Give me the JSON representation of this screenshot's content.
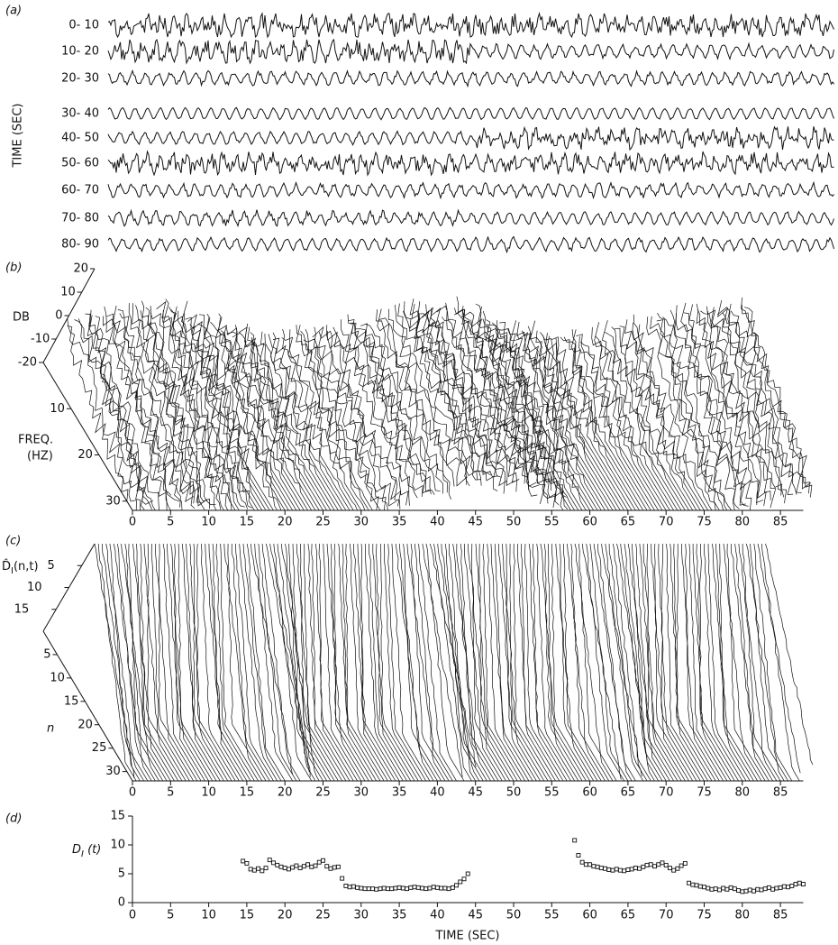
{
  "chart_data": [
    {
      "type": "traces",
      "label": "(a)",
      "ylabel": "TIME (SEC)",
      "categories": [
        "0- 10",
        "10- 20",
        "20- 30",
        "30- 40",
        "40- 50",
        "50- 60",
        "60- 70",
        "70- 80",
        "80- 90"
      ]
    },
    {
      "type": "surface",
      "label": "(b)",
      "zlabel": "DB",
      "zlim": [
        -20,
        20
      ],
      "zticks": [
        20,
        10,
        0,
        -10,
        -20
      ],
      "ylabel": [
        "FREQ.",
        "(HZ)"
      ],
      "ylim": [
        0,
        32
      ],
      "yticks": [
        10,
        20,
        30
      ],
      "xlim": [
        0,
        88
      ],
      "xticks": [
        0,
        5,
        10,
        15,
        20,
        25,
        30,
        35,
        40,
        45,
        50,
        55,
        60,
        65,
        70,
        75,
        80,
        85
      ]
    },
    {
      "type": "waterfall",
      "label": "(c)",
      "zlabel": {
        "main": "D̂",
        "sub": "I",
        "rest": "(n,t)"
      },
      "zlim": [
        0,
        20
      ],
      "zticks": [
        5,
        10,
        15
      ],
      "ylabel": "n",
      "ylim": [
        0,
        32
      ],
      "yticks": [
        5,
        10,
        15,
        20,
        25,
        30
      ],
      "xlim": [
        0,
        88
      ],
      "xticks": [
        0,
        5,
        10,
        15,
        20,
        25,
        30,
        35,
        40,
        45,
        50,
        55,
        60,
        65,
        70,
        75,
        80,
        85
      ]
    },
    {
      "type": "scatter",
      "label": "(d)",
      "ylabel": {
        "main": "D",
        "sub": "I",
        "rest": " (t)"
      },
      "xlabel": "TIME (SEC)",
      "xlim": [
        0,
        88
      ],
      "ylim": [
        0,
        15
      ],
      "yticks": [
        0,
        5,
        10,
        15
      ],
      "xticks": [
        0,
        5,
        10,
        15,
        20,
        25,
        30,
        35,
        40,
        45,
        50,
        55,
        60,
        65,
        70,
        75,
        80,
        85
      ],
      "x": [
        14.5,
        15,
        15.5,
        16,
        16.5,
        17,
        17.5,
        18,
        18.5,
        19,
        19.5,
        20,
        20.5,
        21,
        21.5,
        22,
        22.5,
        23,
        23.5,
        24,
        24.5,
        25,
        25.5,
        26,
        26.5,
        27,
        27.5,
        28,
        28.5,
        29,
        29.5,
        30,
        30.5,
        31,
        31.5,
        32,
        32.5,
        33,
        33.5,
        34,
        34.5,
        35,
        35.5,
        36,
        36.5,
        37,
        37.5,
        38,
        38.5,
        39,
        39.5,
        40,
        40.5,
        41,
        41.5,
        42,
        42.5,
        43,
        43.5,
        44,
        58,
        58.5,
        59,
        59.5,
        60,
        60.5,
        61,
        61.5,
        62,
        62.5,
        63,
        63.5,
        64,
        64.5,
        65,
        65.5,
        66,
        66.5,
        67,
        67.5,
        68,
        68.5,
        69,
        69.5,
        70,
        70.5,
        71,
        71.5,
        72,
        72.5,
        73,
        73.5,
        74,
        74.5,
        75,
        75.5,
        76,
        76.5,
        77,
        77.5,
        78,
        78.5,
        79,
        79.5,
        80,
        80.5,
        81,
        81.5,
        82,
        82.5,
        83,
        83.5,
        84,
        84.5,
        85,
        85.5,
        86,
        86.5,
        87,
        87.5,
        88
      ],
      "values": [
        7.2,
        6.8,
        5.8,
        5.6,
        5.9,
        5.5,
        6.0,
        7.4,
        6.9,
        6.5,
        6.2,
        6.0,
        5.8,
        6.1,
        6.4,
        6.0,
        6.3,
        6.6,
        6.2,
        6.4,
        7.0,
        7.3,
        6.3,
        5.9,
        6.1,
        6.2,
        4.2,
        2.9,
        2.7,
        2.8,
        2.6,
        2.5,
        2.4,
        2.4,
        2.4,
        2.3,
        2.4,
        2.5,
        2.4,
        2.4,
        2.5,
        2.6,
        2.5,
        2.4,
        2.6,
        2.7,
        2.6,
        2.5,
        2.4,
        2.5,
        2.7,
        2.6,
        2.5,
        2.5,
        2.4,
        2.6,
        3.0,
        3.6,
        4.1,
        5.0,
        10.8,
        8.2,
        7.0,
        6.6,
        6.6,
        6.3,
        6.2,
        6.0,
        5.9,
        5.7,
        5.6,
        5.8,
        5.6,
        5.5,
        5.7,
        5.8,
        6.0,
        5.9,
        6.2,
        6.5,
        6.6,
        6.3,
        6.6,
        6.9,
        6.5,
        6.0,
        5.6,
        5.9,
        6.4,
        6.8,
        3.4,
        3.1,
        3.0,
        2.8,
        2.7,
        2.5,
        2.3,
        2.4,
        2.2,
        2.5,
        2.3,
        2.6,
        2.4,
        2.1,
        1.9,
        2.0,
        2.2,
        2.0,
        2.3,
        2.2,
        2.4,
        2.6,
        2.3,
        2.5,
        2.6,
        2.8,
        2.7,
        2.9,
        3.2,
        3.4,
        3.2
      ]
    }
  ]
}
